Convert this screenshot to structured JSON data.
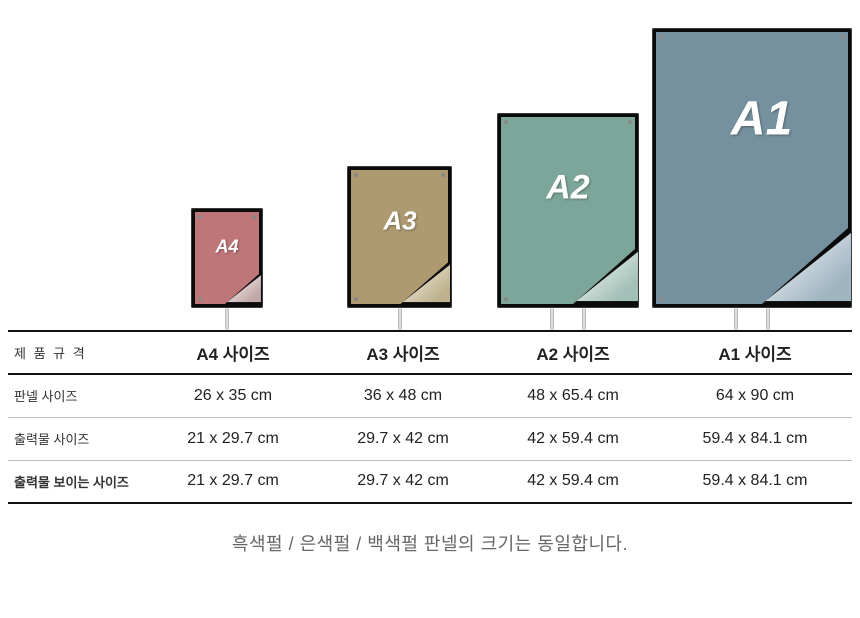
{
  "panels": [
    {
      "label": "A4",
      "fill": "#bf7679",
      "label_fontsize": 18
    },
    {
      "label": "A3",
      "fill": "#ad9a70",
      "label_fontsize": 26
    },
    {
      "label": "A2",
      "fill": "#7da69a",
      "label_fontsize": 34
    },
    {
      "label": "A1",
      "fill": "#75909e",
      "label_fontsize": 48
    }
  ],
  "table": {
    "headers": [
      "제 품 규 격",
      "A4 사이즈",
      "A3 사이즈",
      "A2 사이즈",
      "A1 사이즈"
    ],
    "rows": [
      {
        "label": "판넬 사이즈",
        "cells": [
          "26 x 35 cm",
          "36 x 48 cm",
          "48 x 65.4 cm",
          "64 x 90 cm"
        ]
      },
      {
        "label": "출력물 사이즈",
        "cells": [
          "21 x 29.7 cm",
          "29.7 x 42 cm",
          "42 x 59.4 cm",
          "59.4 x 84.1 cm"
        ]
      },
      {
        "label": "출력물 보이는 사이즈",
        "cells": [
          "21 x 29.7 cm",
          "29.7 x 42 cm",
          "42 x 59.4 cm",
          "59.4 x 84.1 cm"
        ]
      }
    ]
  },
  "style": {
    "border_thick": "#111111",
    "border_thin": "#bdbdbd",
    "background": "#ffffff",
    "panel_frame_bg": "#0b0b0b",
    "footer_color": "#666666"
  },
  "footer": "흑색펄 / 은색펄 / 백색펄 판넬의 크기는 동일합니다."
}
